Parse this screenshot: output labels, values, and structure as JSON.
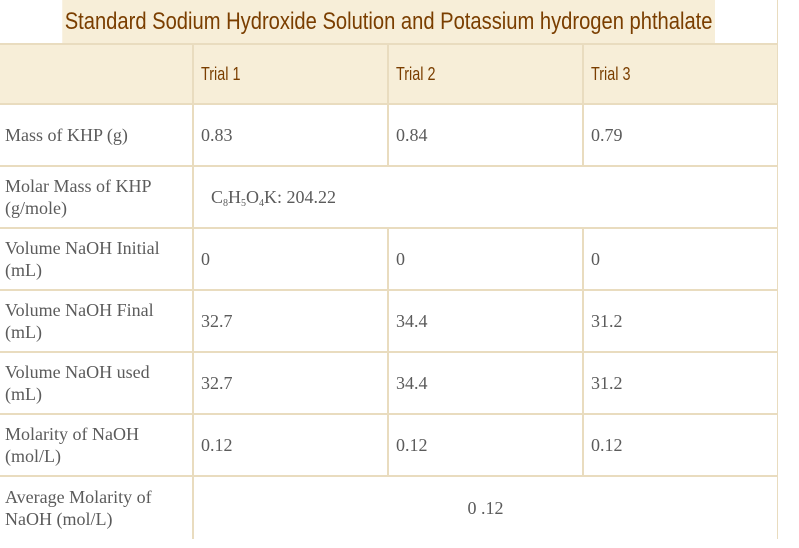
{
  "table": {
    "caption": "Standard Sodium Hydroxide Solution and Potassium hydrogen phthalate",
    "headers": [
      "",
      "Trial 1",
      "Trial 2",
      "Trial 3"
    ],
    "rows": {
      "mass_khp": {
        "label": "Mass of KHP (g)",
        "values": [
          "0.83",
          "0.84",
          "0.79"
        ]
      },
      "molar_mass": {
        "label": "Molar Mass of KHP (g/mole)",
        "formula": {
          "c": "C",
          "c_sub": "8",
          "h": "H",
          "h_sub": "5",
          "o": "O",
          "o_sub": "4",
          "rest": "K: 204.22"
        }
      },
      "vol_initial": {
        "label": "Volume NaOH Initial (mL)",
        "values": [
          "0",
          "0",
          "0"
        ]
      },
      "vol_final": {
        "label": "Volume NaOH Final (mL)",
        "values": [
          "32.7",
          "34.4",
          "31.2"
        ]
      },
      "vol_used": {
        "label": "Volume NaOH used (mL)",
        "values": [
          "32.7",
          "34.4",
          "31.2"
        ]
      },
      "molarity": {
        "label": "Molarity of NaOH (mol/L)",
        "values": [
          "0.12",
          "0.12",
          "0.12"
        ]
      },
      "avg_molarity": {
        "label": "Average Molarity of NaOH (mol/L)",
        "value": "0 .12"
      }
    }
  },
  "colors": {
    "header_bg": "#f7eed8",
    "header_text": "#7a3e00",
    "border": "#e9dcbf",
    "body_text": "#5b5b5b"
  }
}
